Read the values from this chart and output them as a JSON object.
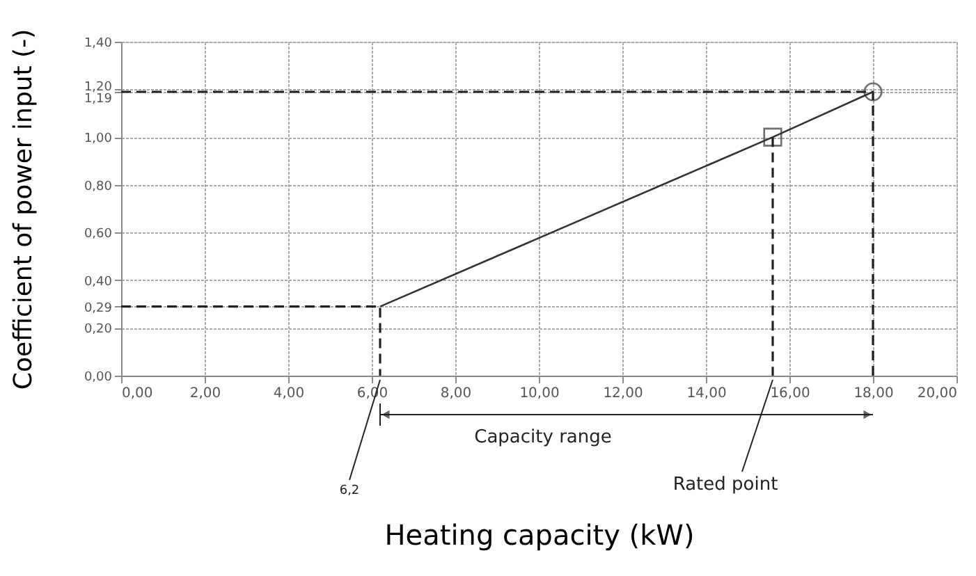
{
  "chart_data": {
    "type": "line",
    "xlabel": "Heating capacity (kW)",
    "ylabel": "Coefficient of power input (-)",
    "xlim": [
      0,
      20
    ],
    "ylim": [
      0,
      1.4
    ],
    "xticks": [
      {
        "value": 0,
        "label": "0,00"
      },
      {
        "value": 2,
        "label": "2,00"
      },
      {
        "value": 4,
        "label": "4,00"
      },
      {
        "value": 6,
        "label": "6,00"
      },
      {
        "value": 8,
        "label": "8,00"
      },
      {
        "value": 10,
        "label": "10,00"
      },
      {
        "value": 12,
        "label": "12,00"
      },
      {
        "value": 14,
        "label": "14,00"
      },
      {
        "value": 16,
        "label": "16,00"
      },
      {
        "value": 18,
        "label": "18,00"
      },
      {
        "value": 20,
        "label": "20,00"
      }
    ],
    "yticks": [
      {
        "value": 0,
        "label": "0,00"
      },
      {
        "value": 0.2,
        "label": "0,20"
      },
      {
        "value": 0.29,
        "label": "0,29"
      },
      {
        "value": 0.4,
        "label": "0,40"
      },
      {
        "value": 0.6,
        "label": "0,60"
      },
      {
        "value": 0.8,
        "label": "0,80"
      },
      {
        "value": 1.0,
        "label": "1,00"
      },
      {
        "value": 1.19,
        "label": "1,19"
      },
      {
        "value": 1.2,
        "label": "1,20"
      },
      {
        "value": 1.4,
        "label": "1,40"
      }
    ],
    "grid": true,
    "series": [
      {
        "color": "#333333",
        "x": [
          6.2,
          15.6,
          18
        ],
        "values": [
          0.29,
          1.0,
          1.19
        ],
        "marker": "none",
        "line_style": "solid"
      },
      {
        "type": "scatter",
        "color": "#333333",
        "x": [
          15.6
        ],
        "values": [
          1.0
        ],
        "marker": "square"
      },
      {
        "type": "scatter",
        "color": "#333333",
        "x": [
          18
        ],
        "values": [
          1.19
        ],
        "marker": "circle"
      },
      {
        "type": "line",
        "color": "#222222",
        "x": [
          0,
          6.2,
          6.2
        ],
        "values": [
          0.29,
          0.29,
          0
        ],
        "marker": "none",
        "line_style": "dashed"
      },
      {
        "type": "line",
        "color": "#222222",
        "x": [
          0,
          18,
          18
        ],
        "values": [
          1.19,
          1.19,
          0
        ],
        "marker": "none",
        "line_style": "dashed"
      },
      {
        "type": "line",
        "color": "#222222",
        "x": [
          15.6,
          15.6
        ],
        "values": [
          1.0,
          0
        ],
        "marker": "none",
        "line_style": "dashed"
      }
    ],
    "annotations": [
      {
        "text": "6,2",
        "x": 6.2,
        "y": 0
      },
      "Capacity range",
      {
        "text": "Rated point",
        "x": 15.6,
        "y": 0
      }
    ]
  }
}
